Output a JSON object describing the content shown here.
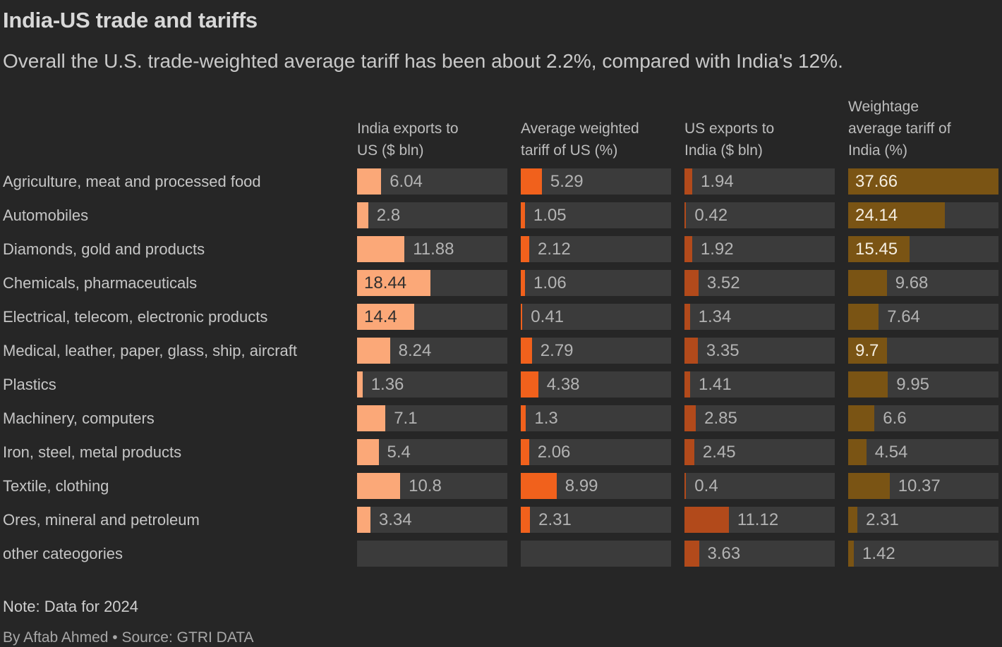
{
  "header": {
    "title": "India-US trade and tariffs",
    "subtitle": "Overall the U.S. trade-weighted average tariff has been about 2.2%, compared with India's 12%."
  },
  "footer": {
    "note": "Note: Data for 2024",
    "byline": "By Aftab Ahmed • Source: GTRI DATA"
  },
  "colors": {
    "background": "#262626",
    "track": "#3b3b3b",
    "india_exports": "#FBA878",
    "us_tariff": "#F1611C",
    "us_exports": "#B24A1B",
    "india_tariff": "#7A5414"
  },
  "chart_data": {
    "type": "bar",
    "orientation": "horizontal",
    "title": "India-US trade and tariffs",
    "subtitle": "Overall the U.S. trade-weighted average tariff has been about 2.2%, compared with India's 12%.",
    "note": "Note: Data for 2024",
    "byline": "By Aftab Ahmed • Source: GTRI DATA",
    "xlim": [
      0,
      37.66
    ],
    "grid": false,
    "legend_position": "column-headers",
    "categories": [
      "Agriculture, meat and processed food",
      "Automobiles",
      "Diamonds, gold and products",
      "Chemicals, pharmaceuticals",
      "Electrical, telecom, electronic products",
      "Medical, leather, paper, glass, ship, aircraft",
      "Plastics",
      "Machinery, computers",
      "Iron, steel, metal products",
      "Textile, clothing",
      "Ores, mineral and petroleum",
      "other cateogories"
    ],
    "series": [
      {
        "name": "India exports to US ($ bln)",
        "header_lines": [
          "India exports to",
          "US ($ bln)"
        ],
        "color": "#FBA878",
        "inside_label_style": "dark",
        "values": [
          6.04,
          2.8,
          11.88,
          18.44,
          14.4,
          8.24,
          1.36,
          7.1,
          5.4,
          10.8,
          3.34,
          null
        ]
      },
      {
        "name": "Average weighted tariff of US (%)",
        "header_lines": [
          "Average weighted",
          "tariff of US (%)"
        ],
        "color": "#F1611C",
        "inside_label_style": "dark",
        "values": [
          5.29,
          1.05,
          2.12,
          1.06,
          0.41,
          2.79,
          4.38,
          1.3,
          2.06,
          8.99,
          2.31,
          null
        ]
      },
      {
        "name": "US exports to India ($ bln)",
        "header_lines": [
          "US exports to",
          "India ($ bln)"
        ],
        "color": "#B24A1B",
        "inside_label_style": "dark",
        "values": [
          1.94,
          0.42,
          1.92,
          3.52,
          1.34,
          3.35,
          1.41,
          2.85,
          2.45,
          0.4,
          11.12,
          3.63
        ]
      },
      {
        "name": "Weightage average tariff of India (%)",
        "header_lines": [
          "Weightage",
          "average tariff of",
          "India (%)"
        ],
        "color": "#7A5414",
        "inside_label_style": "light",
        "values": [
          37.66,
          24.14,
          15.45,
          9.68,
          7.64,
          9.7,
          9.95,
          6.6,
          4.54,
          10.37,
          2.31,
          1.42
        ]
      }
    ]
  }
}
